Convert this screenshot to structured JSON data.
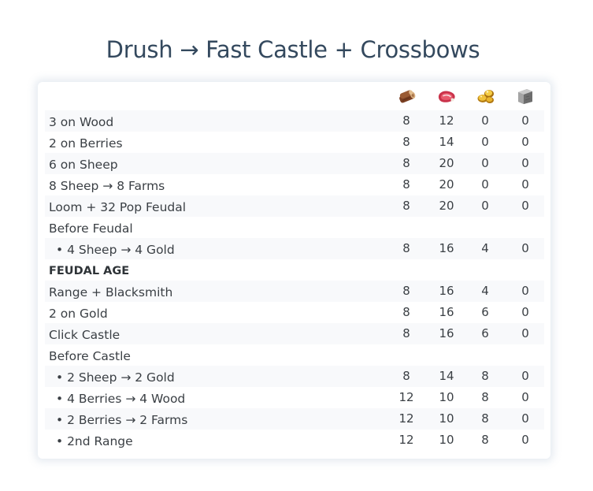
{
  "title": "Drush → Fast Castle + Crossbows",
  "resources": [
    {
      "icon": "wood-icon"
    },
    {
      "icon": "food-icon"
    },
    {
      "icon": "gold-icon"
    },
    {
      "icon": "stone-icon"
    }
  ],
  "rows": [
    {
      "label": "3 on Wood",
      "type": "step",
      "values": [
        "8",
        "12",
        "0",
        "0"
      ]
    },
    {
      "label": "2 on Berries",
      "type": "step",
      "values": [
        "8",
        "14",
        "0",
        "0"
      ]
    },
    {
      "label": "6 on Sheep",
      "type": "step",
      "values": [
        "8",
        "20",
        "0",
        "0"
      ]
    },
    {
      "label": "8 Sheep → 8 Farms",
      "type": "step",
      "values": [
        "8",
        "20",
        "0",
        "0"
      ]
    },
    {
      "label": "Loom + 32 Pop Feudal",
      "type": "step",
      "values": [
        "8",
        "20",
        "0",
        "0"
      ]
    },
    {
      "label": "Before Feudal",
      "type": "group",
      "values": []
    },
    {
      "label": "• 4 Sheep → 4 Gold",
      "type": "sub",
      "values": [
        "8",
        "16",
        "4",
        "0"
      ]
    },
    {
      "label": "FEUDAL AGE",
      "type": "section",
      "values": []
    },
    {
      "label": "Range + Blacksmith",
      "type": "step",
      "values": [
        "8",
        "16",
        "4",
        "0"
      ]
    },
    {
      "label": "2 on Gold",
      "type": "step",
      "values": [
        "8",
        "16",
        "6",
        "0"
      ]
    },
    {
      "label": "Click Castle",
      "type": "step",
      "values": [
        "8",
        "16",
        "6",
        "0"
      ]
    },
    {
      "label": "Before Castle",
      "type": "group",
      "values": []
    },
    {
      "label": "• 2 Sheep → 2 Gold",
      "type": "sub",
      "values": [
        "8",
        "14",
        "8",
        "0"
      ]
    },
    {
      "label": "• 4 Berries → 4 Wood",
      "type": "sub",
      "values": [
        "12",
        "10",
        "8",
        "0"
      ]
    },
    {
      "label": "• 2 Berries → 2 Farms",
      "type": "sub",
      "values": [
        "12",
        "10",
        "8",
        "0"
      ]
    },
    {
      "label": "• 2nd Range",
      "type": "sub",
      "values": [
        "12",
        "10",
        "8",
        "0"
      ]
    }
  ]
}
